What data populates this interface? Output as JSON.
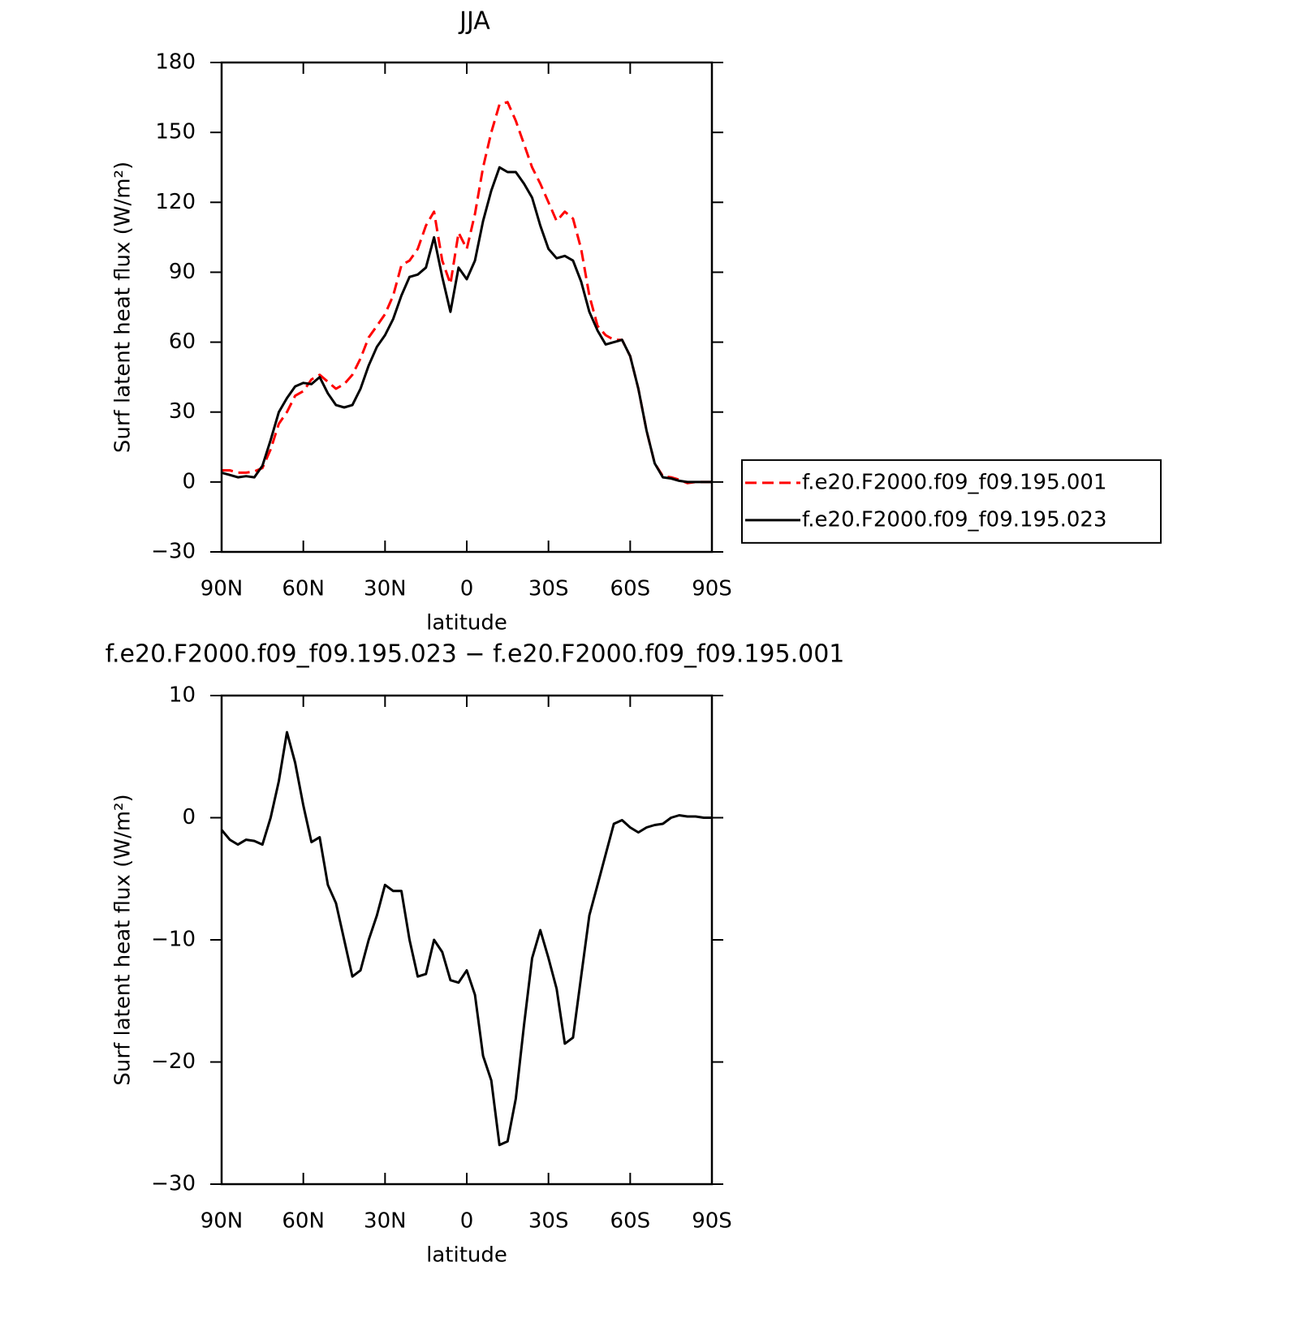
{
  "chart_data": [
    {
      "type": "line",
      "title": "JJA",
      "xlabel": "latitude",
      "ylabel": "Surf latent heat flux (W/m²)",
      "x": [
        90,
        87,
        84,
        81,
        78,
        75,
        72,
        69,
        66,
        63,
        60,
        57,
        54,
        51,
        48,
        45,
        42,
        39,
        36,
        33,
        30,
        27,
        24,
        21,
        18,
        15,
        12,
        9,
        6,
        3,
        0,
        -3,
        -6,
        -9,
        -12,
        -15,
        -18,
        -21,
        -24,
        -27,
        -30,
        -33,
        -36,
        -39,
        -42,
        -45,
        -48,
        -51,
        -54,
        -57,
        -60,
        -63,
        -66,
        -69,
        -72,
        -75,
        -78,
        -81,
        -84,
        -87,
        -90
      ],
      "series": [
        {
          "name": "f.e20.F2000.f09_f09.195.001",
          "color": "#ff0000",
          "dash": "dashed",
          "values": [
            5,
            5,
            4,
            4,
            4.5,
            6,
            14,
            25,
            30,
            37,
            39,
            44,
            46,
            43,
            40,
            42,
            46,
            53,
            62,
            67,
            72,
            80,
            93,
            95,
            100,
            110,
            116,
            95,
            85,
            107,
            100,
            115,
            135,
            150,
            162,
            163,
            155,
            145,
            135,
            128,
            120,
            112,
            116,
            113,
            100,
            80,
            67,
            63,
            61,
            61,
            54,
            40,
            22,
            8,
            2.5,
            2,
            1,
            -0.5,
            0,
            0,
            0
          ]
        },
        {
          "name": "f.e20.F2000.f09_f09.195.023",
          "color": "#000000",
          "dash": "solid",
          "values": [
            4,
            3,
            2,
            2.5,
            2,
            7,
            18,
            30,
            36,
            41,
            42.5,
            42,
            45,
            38,
            33,
            32,
            33,
            40,
            50,
            58,
            63,
            70,
            80,
            88,
            89,
            92,
            105,
            88,
            73,
            92,
            87,
            95,
            112,
            125,
            135,
            133,
            133,
            128,
            122,
            110,
            100,
            96,
            97,
            95,
            86,
            73,
            65,
            59,
            60,
            61,
            54,
            40,
            22,
            8,
            2,
            1.5,
            0.5,
            0,
            0,
            0,
            0
          ]
        }
      ],
      "xlim": [
        90,
        -90
      ],
      "xticks": [
        {
          "value": 90,
          "label": "90N"
        },
        {
          "value": 60,
          "label": "60N"
        },
        {
          "value": 30,
          "label": "30N"
        },
        0,
        {
          "value": -30,
          "label": "30S"
        },
        {
          "value": -60,
          "label": "60S"
        },
        {
          "value": -90,
          "label": "90S"
        }
      ],
      "ylim": [
        -30,
        180
      ],
      "yticks": [
        {
          "value": -30,
          "label": "−30"
        },
        0,
        30,
        60,
        90,
        120,
        150,
        180
      ],
      "legend": "right"
    },
    {
      "type": "line",
      "title": "f.e20.F2000.f09_f09.195.023 − f.e20.F2000.f09_f09.195.001",
      "xlabel": "latitude",
      "ylabel": "Surf latent heat flux (W/m²)",
      "x": [
        90,
        87,
        84,
        81,
        78,
        75,
        72,
        69,
        66,
        63,
        60,
        57,
        54,
        51,
        48,
        45,
        42,
        39,
        36,
        33,
        30,
        27,
        24,
        21,
        18,
        15,
        12,
        9,
        6,
        3,
        0,
        -3,
        -6,
        -9,
        -12,
        -15,
        -18,
        -21,
        -24,
        -27,
        -30,
        -33,
        -36,
        -39,
        -42,
        -45,
        -48,
        -51,
        -54,
        -57,
        -60,
        -63,
        -66,
        -69,
        -72,
        -75,
        -78,
        -81,
        -84,
        -87,
        -90
      ],
      "color": "#000000",
      "values": [
        -1,
        -1.8,
        -2.2,
        -1.8,
        -1.9,
        -2.2,
        0,
        3,
        7,
        4.5,
        1,
        -2,
        -1.6,
        -5.5,
        -7,
        -10,
        -13,
        -12.5,
        -10,
        -8,
        -5.5,
        -6,
        -6,
        -10,
        -13,
        -12.8,
        -10,
        -11,
        -13.3,
        -13.5,
        -12.5,
        -14.5,
        -19.5,
        -21.5,
        -26.8,
        -26.5,
        -23,
        -17,
        -11.5,
        -9.2,
        -11.5,
        -14,
        -18.5,
        -18,
        -13,
        -8,
        -5.5,
        -3,
        -0.5,
        -0.2,
        -0.8,
        -1.2,
        -0.8,
        -0.6,
        -0.5,
        0,
        0.2,
        0.1,
        0.1,
        0,
        0
      ],
      "xlim": [
        90,
        -90
      ],
      "xticks": [
        {
          "value": 90,
          "label": "90N"
        },
        {
          "value": 60,
          "label": "60N"
        },
        {
          "value": 30,
          "label": "30N"
        },
        0,
        {
          "value": -30,
          "label": "30S"
        },
        {
          "value": -60,
          "label": "60S"
        },
        {
          "value": -90,
          "label": "90S"
        }
      ],
      "ylim": [
        -30,
        10
      ],
      "yticks": [
        {
          "value": -30,
          "label": "−30"
        },
        {
          "value": -20,
          "label": "−20"
        },
        {
          "value": -10,
          "label": "−10"
        },
        0,
        10
      ]
    }
  ]
}
